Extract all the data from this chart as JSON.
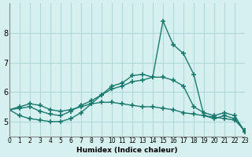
{
  "xlabel": "Humidex (Indice chaleur)",
  "background_color": "#d6f0f0",
  "grid_color": "#b0d8d8",
  "line_color": "#1a7a6e",
  "xlim": [
    0,
    23
  ],
  "ylim": [
    4.5,
    9.0
  ],
  "yticks": [
    5,
    6,
    7,
    8
  ],
  "xticks": [
    0,
    1,
    2,
    3,
    4,
    5,
    6,
    7,
    8,
    9,
    10,
    11,
    12,
    13,
    14,
    15,
    16,
    17,
    18,
    19,
    20,
    21,
    22,
    23
  ],
  "series1_x": [
    0,
    1,
    2,
    3,
    4,
    5,
    6,
    7,
    8,
    9,
    10,
    11,
    12,
    13,
    14,
    15,
    16,
    17,
    18,
    19,
    20,
    21,
    22,
    23
  ],
  "series1_y": [
    5.4,
    5.5,
    5.6,
    5.55,
    5.4,
    5.35,
    5.4,
    5.5,
    5.6,
    5.65,
    5.65,
    5.6,
    5.55,
    5.5,
    5.5,
    5.45,
    5.4,
    5.3,
    5.25,
    5.2,
    5.15,
    5.1,
    5.05,
    4.7
  ],
  "series2_x": [
    0,
    1,
    2,
    3,
    4,
    5,
    6,
    7,
    8,
    9,
    10,
    11,
    12,
    13,
    14,
    15,
    16,
    17,
    18,
    19,
    20,
    21,
    22,
    23
  ],
  "series2_y": [
    5.4,
    5.2,
    5.1,
    5.05,
    5.0,
    5.0,
    5.1,
    5.3,
    5.6,
    5.9,
    6.2,
    6.3,
    6.55,
    6.6,
    6.5,
    8.4,
    7.6,
    7.3,
    6.6,
    5.2,
    5.1,
    5.2,
    5.1,
    4.65
  ],
  "series3_x": [
    0,
    1,
    2,
    3,
    4,
    5,
    6,
    7,
    8,
    9,
    10,
    11,
    12,
    13,
    14,
    15,
    16,
    17,
    18,
    19,
    20,
    21,
    22,
    23
  ],
  "series3_y": [
    5.4,
    5.45,
    5.5,
    5.35,
    5.25,
    5.2,
    5.35,
    5.55,
    5.7,
    5.9,
    6.1,
    6.2,
    6.35,
    6.4,
    6.5,
    6.5,
    6.4,
    6.2,
    5.5,
    5.3,
    5.2,
    5.3,
    5.2,
    4.65
  ]
}
